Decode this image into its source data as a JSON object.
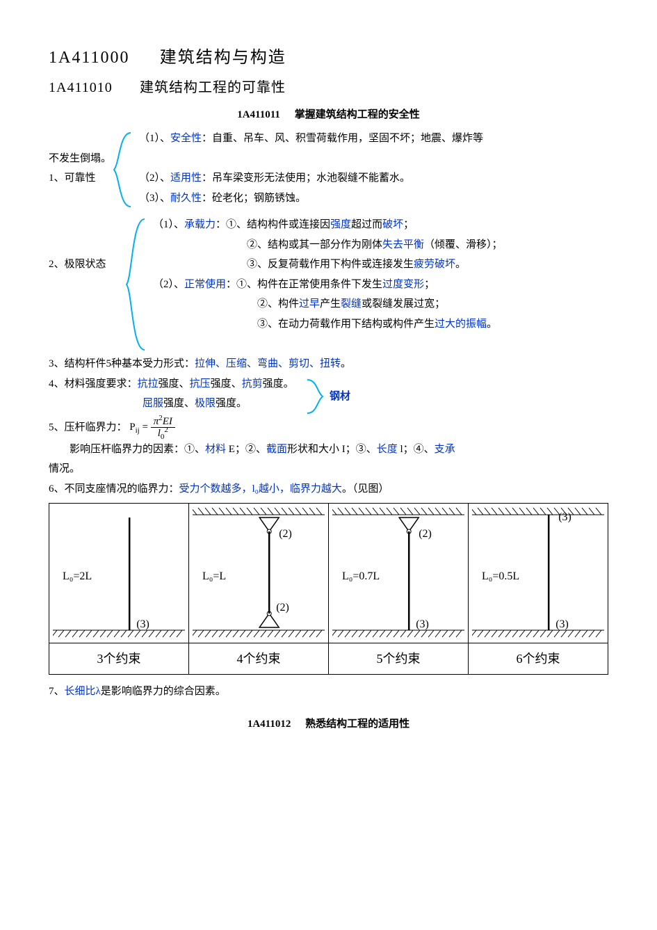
{
  "heading1": {
    "code": "1A411000",
    "title": "建筑结构与构造"
  },
  "heading2": {
    "code": "1A411010",
    "title": "建筑结构工程的可靠性"
  },
  "heading3": {
    "code": "1A411011",
    "title": "掌握建筑结构工程的安全性"
  },
  "item1_label": "1、可靠性",
  "item1_1_pre": "（1）、",
  "item1_1_key": "安全性",
  "item1_1_colon": "：",
  "item1_1_text": "自重、吊车、风、积雪荷载作用，坚固不坏；地震、爆炸等",
  "item1_1_cont": "不发生倒塌。",
  "item1_2_pre": "（2）、",
  "item1_2_key": "适用性",
  "item1_2_colon": "：",
  "item1_2_text": "吊车梁变形无法使用；水池裂缝不能蓄水。",
  "item1_3_pre": "（3）、",
  "item1_3_key": "耐久性",
  "item1_3_colon": "：",
  "item1_3_text": "砼老化；钢筋锈蚀。",
  "item2_label": "2、极限状态",
  "item2_1_pre": "（1）、",
  "item2_1_key": "承载力",
  "item2_1_colon": "：",
  "item2_1a_pre": "①、结构构件或连接因",
  "item2_1a_k1": "强度",
  "item2_1a_mid": "超过而",
  "item2_1a_k2": "破坏",
  "item2_1a_end": "；",
  "item2_1b_pre": "②、结构或其一部分作为刚体",
  "item2_1b_k1": "失去平衡",
  "item2_1b_end": "（倾覆、滑移）；",
  "item2_1c_pre": "③、反复荷载作用下构件或连接发生",
  "item2_1c_k1": "疲劳破坏",
  "item2_1c_end": "。",
  "item2_2_pre": "（2）、",
  "item2_2_key": "正常使用",
  "item2_2_colon": "：",
  "item2_2a_pre": "①、构件在正常使用条件下发生",
  "item2_2a_k1": "过度变形",
  "item2_2a_end": "；",
  "item2_2b_pre": "②、构件",
  "item2_2b_k1": "过早",
  "item2_2b_mid": "产生",
  "item2_2b_k2": "裂缝",
  "item2_2b_end": "或裂缝发展过宽；",
  "item2_2c_pre": "③、在动力荷载作用下结构或构件产生",
  "item2_2c_k1": "过大的振幅",
  "item2_2c_end": "。",
  "item3_pre": "3、结构杆件5种基本受力形式：",
  "item3_key": "拉伸、压缩、弯曲、剪切、扭转",
  "item3_end": "。",
  "item4_pre": "4、材料强度要求：",
  "item4_k1": "抗拉",
  "item4_s1": "强度、",
  "item4_k2": "抗压",
  "item4_s2": "强度、",
  "item4_k3": "抗剪",
  "item4_s3": "强度。",
  "item4b_k1": "屈服",
  "item4b_s1": "强度、",
  "item4b_k2": "极限",
  "item4b_s2": "强度。",
  "item4_right": "钢材",
  "item5_pre": "5、压杆临界力：",
  "item5_P": "P",
  "item5_sub": "ij",
  "item5_eq": "=",
  "item5_num_pi": "π",
  "item5_num_sup": "2",
  "item5_num_EI": "EI",
  "item5_den_l": "l",
  "item5_den_sub": "0",
  "item5_den_sup": "2",
  "item5b_pre": "影响压杆临界力的因素：①、",
  "item5b_k1": "材料",
  "item5b_s1": " E；②、",
  "item5b_k2": "截面",
  "item5b_s2": "形状和大小 I；③、",
  "item5b_k3": "长度",
  "item5b_s3": " l；④、",
  "item5b_k4": "支承",
  "item5b_cont": "情况。",
  "item6_pre": "6、不同支座情况的临界力：",
  "item6_key": "受力个数越多，l₀越小，临界力越大",
  "item6_end": "。（见图）",
  "diagram": {
    "cells": [
      {
        "top_fixed": false,
        "top_hinge": false,
        "top_free": true,
        "bot_fixed": true,
        "bot_hinge": false,
        "L": "L₀=2L",
        "top_num": "",
        "bot_num": "(3)",
        "label": "3个约束"
      },
      {
        "top_fixed": false,
        "top_hinge": true,
        "top_free": false,
        "bot_fixed": false,
        "bot_hinge": true,
        "L": "L₀=L",
        "top_num": "(2)",
        "bot_num": "(2)",
        "label": "4个约束"
      },
      {
        "top_fixed": false,
        "top_hinge": true,
        "top_free": false,
        "bot_fixed": true,
        "bot_hinge": false,
        "L": "L₀=0.7L",
        "top_num": "(2)",
        "bot_num": "(3)",
        "label": "5个约束"
      },
      {
        "top_fixed": true,
        "top_hinge": false,
        "top_free": false,
        "bot_fixed": true,
        "bot_hinge": false,
        "L": "L₀=0.5L",
        "top_num": "(3)",
        "bot_num": "(3)",
        "label": "6个约束"
      }
    ]
  },
  "item7_pre": "7、",
  "item7_key": "长细比λ",
  "item7_end": "是影响临界力的综合因素。",
  "heading4": {
    "code": "1A411012",
    "title": "熟悉结构工程的适用性"
  },
  "bracket_color": "#00b0f0"
}
